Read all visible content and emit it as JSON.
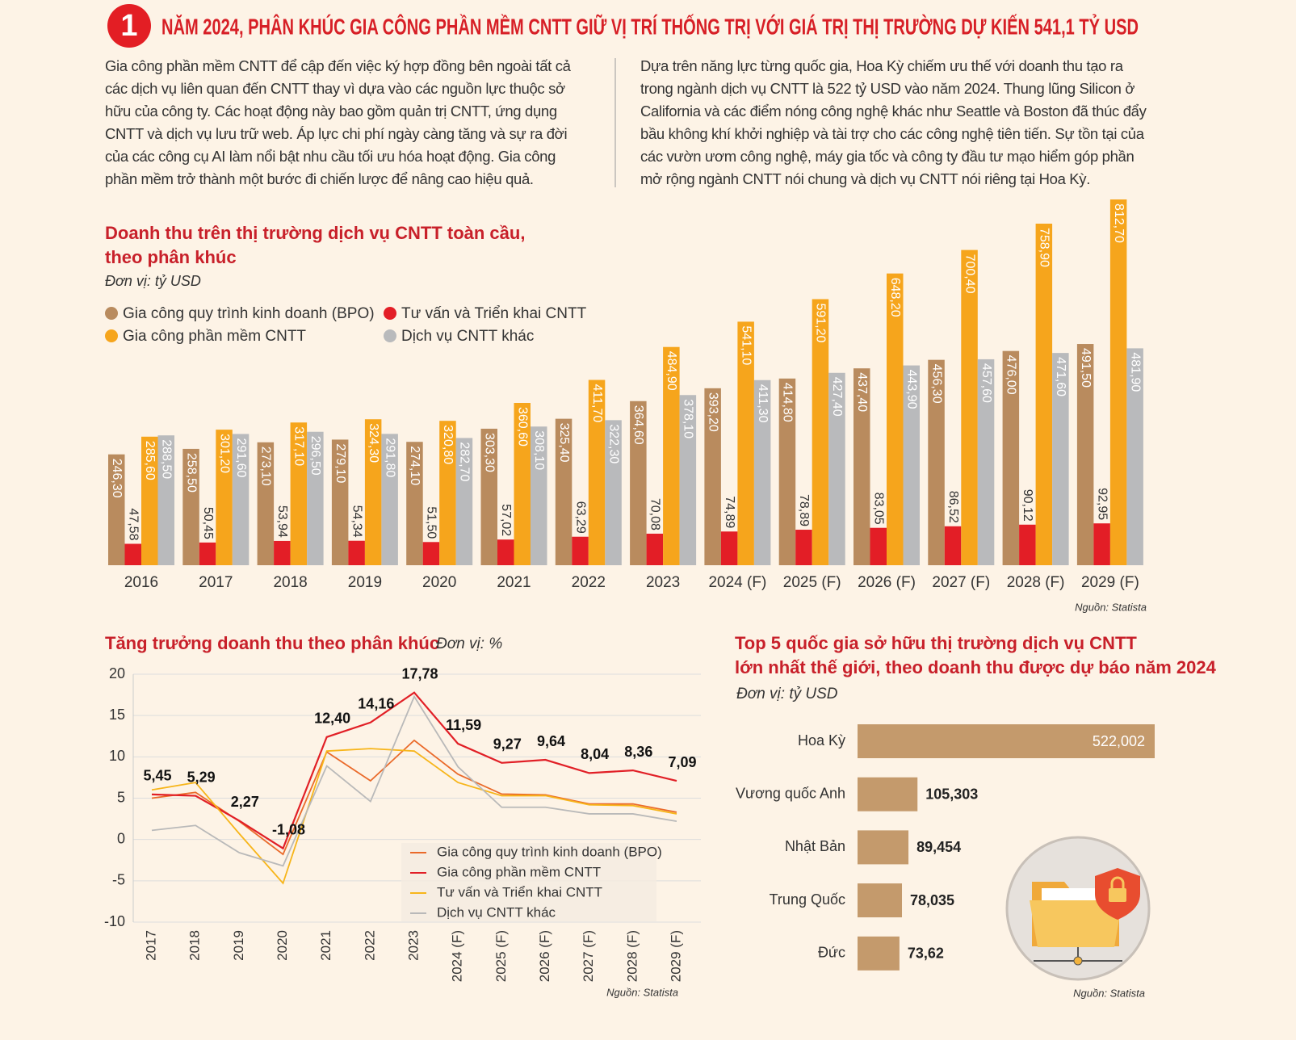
{
  "header": {
    "number": "1",
    "title": "NĂM 2024, PHÂN KHÚC GIA CÔNG PHẦN MỀM CNTT GIỮ VỊ TRÍ THỐNG TRỊ VỚI GIÁ TRỊ THỊ TRƯỜNG DỰ KIẾN 541,1 TỶ USD"
  },
  "paragraphs": [
    "Gia công phần mềm CNTT để cập đến việc ký hợp đồng bên ngoài tất cả các dịch vụ liên quan đến CNTT thay vì dựa vào các nguồn lực thuộc sở hữu của công ty. Các hoạt động này bao gồm quản trị CNTT, ứng dụng CNTT và dịch vụ lưu trữ web. Áp lực chi phí ngày càng tăng và sự ra đời của các công cụ AI làm nổi bật nhu cầu tối ưu hóa hoạt động. Gia công phần mềm trở thành một bước đi chiến lược để nâng cao hiệu quả.",
    "Dựa trên năng lực từng quốc gia, Hoa Kỳ chiếm ưu thế với doanh thu tạo ra trong ngành dịch vụ CNTT là 522 tỷ USD vào năm 2024. Thung lũng Silicon ở California và các điểm nóng công nghệ khác như Seattle và Boston đã thúc đẩy bầu không khí khởi nghiệp và tài trợ cho các công nghệ tiên tiến. Sự tồn tại của các vườn ươm công nghệ, máy gia tốc và công ty đầu tư mạo hiểm góp phần mở rộng ngành CNTT nói chung và dịch vụ CNTT nói riêng tại Hoa Kỳ."
  ],
  "chart_data": [
    {
      "type": "bar",
      "title": [
        "Doanh thu trên thị trường dịch vụ CNTT toàn cầu,",
        "theo phân khúc"
      ],
      "unit": "Đơn vị: tỷ USD",
      "source": "Nguồn: Statista",
      "categories": [
        "2016",
        "2017",
        "2018",
        "2019",
        "2020",
        "2021",
        "2022",
        "2023",
        "2024 (F)",
        "2025 (F)",
        "2026 (F)",
        "2027 (F)",
        "2028 (F)",
        "2029 (F)"
      ],
      "series": [
        {
          "name": "Gia công quy trình kinh doanh (BPO)",
          "color": "#b98b5e",
          "values": [
            246.3,
            258.5,
            273.1,
            279.1,
            274.1,
            303.3,
            325.4,
            364.6,
            393.2,
            414.8,
            437.4,
            456.3,
            476.0,
            491.5
          ],
          "value_labels": [
            "246,30",
            "258,50",
            "273,10",
            "279,10",
            "274,10",
            "303,30",
            "325,40",
            "364,60",
            "393,20",
            "414,80",
            "437,40",
            "456,30",
            "476,00",
            "491,50"
          ]
        },
        {
          "name": "Tư vấn và Triển khai CNTT",
          "color": "#e31e26",
          "values": [
            47.58,
            50.45,
            53.94,
            54.34,
            51.5,
            57.02,
            63.29,
            70.08,
            74.89,
            78.89,
            83.05,
            86.52,
            90.12,
            92.95
          ],
          "value_labels": [
            "47,58",
            "50,45",
            "53,94",
            "54,34",
            "51,50",
            "57,02",
            "63,29",
            "70,08",
            "74,89",
            "78,89",
            "83,05",
            "86,52",
            "90,12",
            "92,95"
          ]
        },
        {
          "name": "Gia công phần mềm CNTT",
          "color": "#f6a51c",
          "values": [
            285.6,
            301.2,
            317.1,
            324.3,
            320.8,
            360.6,
            411.7,
            484.9,
            541.1,
            591.2,
            648.2,
            700.4,
            758.9,
            812.7
          ],
          "value_labels": [
            "285,60",
            "301,20",
            "317,10",
            "324,30",
            "320,80",
            "360,60",
            "411,70",
            "484,90",
            "541,10",
            "591,20",
            "648,20",
            "700,40",
            "758,90",
            "812,70"
          ]
        },
        {
          "name": "Dịch vụ CNTT khác",
          "color": "#b9babc",
          "values": [
            288.5,
            291.6,
            296.5,
            291.8,
            282.7,
            308.1,
            322.3,
            378.1,
            411.3,
            427.4,
            443.9,
            457.6,
            471.6,
            481.9
          ],
          "value_labels": [
            "288,50",
            "291,60",
            "296,50",
            "291,80",
            "282,70",
            "308,10",
            "322,30",
            "378,10",
            "411,30",
            "427,40",
            "443,90",
            "457,60",
            "471,60",
            "481,90"
          ]
        }
      ]
    },
    {
      "type": "line",
      "title": "Tăng trưởng doanh thu theo phân khúc",
      "unit": "Đơn vị: %",
      "source": "Nguồn: Statista",
      "categories": [
        "2017",
        "2018",
        "2019",
        "2020",
        "2021",
        "2022",
        "2023",
        "2024 (F)",
        "2025 (F)",
        "2026 (F)",
        "2027 (F)",
        "2028 (F)",
        "2029 (F)"
      ],
      "ylim": [
        -10,
        20
      ],
      "yticks": [
        -10,
        -5,
        0,
        5,
        10,
        15,
        20
      ],
      "grid": true,
      "series": [
        {
          "name": "Gia công quy trình kinh doanh (BPO)",
          "color": "#ea6a2a",
          "values": [
            5.0,
            5.7,
            2.2,
            -1.8,
            10.6,
            7.1,
            12.0,
            7.9,
            5.5,
            5.4,
            4.3,
            4.3,
            3.3
          ]
        },
        {
          "name": "Gia công phần mềm CNTT",
          "color": "#e11f26",
          "values": [
            5.45,
            5.29,
            2.27,
            -1.08,
            12.4,
            14.16,
            17.78,
            11.59,
            9.27,
            9.64,
            8.04,
            8.36,
            7.09
          ],
          "value_labels": [
            "5,45",
            "5,29",
            "2,27",
            "-1,08",
            "12,40",
            "14,16",
            "17,78",
            "11,59",
            "9,27",
            "9,64",
            "8,04",
            "8,36",
            "7,09"
          ]
        },
        {
          "name": "Tư vấn và Triển khai CNTT",
          "color": "#f7b51a",
          "values": [
            6.0,
            6.9,
            0.7,
            -5.3,
            10.7,
            11.0,
            10.7,
            6.9,
            5.3,
            5.3,
            4.2,
            4.1,
            3.1
          ]
        },
        {
          "name": "Dịch vụ CNTT khác",
          "color": "#b9b9b9",
          "values": [
            1.1,
            1.7,
            -1.6,
            -3.2,
            8.9,
            4.6,
            17.3,
            8.8,
            3.9,
            3.9,
            3.1,
            3.1,
            2.2
          ]
        }
      ]
    },
    {
      "type": "barh",
      "title": [
        "Top 5 quốc gia sở hữu thị trường dịch vụ CNTT",
        "lớn nhất thế giới, theo doanh thu được dự báo năm 2024"
      ],
      "unit": "Đơn vị: tỷ USD",
      "source": "Nguồn: Statista",
      "color": "#c49a6c",
      "categories": [
        "Hoa Kỳ",
        "Vương quốc Anh",
        "Nhật Bản",
        "Trung Quốc",
        "Đức"
      ],
      "values": [
        522.002,
        105.303,
        89.454,
        78.035,
        73.62
      ],
      "value_labels": [
        "522,002",
        "105,303",
        "89,454",
        "78,035",
        "73,62"
      ]
    }
  ]
}
